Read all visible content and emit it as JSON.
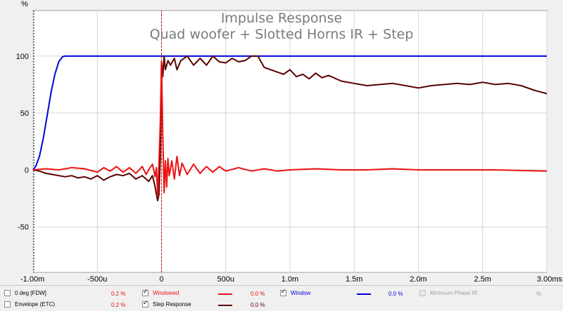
{
  "chart_data": {
    "type": "line",
    "title": "Impulse Response",
    "subtitle": "Quad woofer + Slotted Horns IR + Step",
    "ylabel": "%",
    "xlabel": "",
    "xlim": [
      -1.0,
      3.0
    ],
    "ylim": [
      -90,
      140
    ],
    "x_unit": "ms",
    "grid": true,
    "x_ticks": [
      {
        "value": -1.0,
        "label": "-1.00m"
      },
      {
        "value": -0.5,
        "label": "-500u"
      },
      {
        "value": 0.0,
        "label": "0"
      },
      {
        "value": 0.5,
        "label": "500u"
      },
      {
        "value": 1.0,
        "label": "1.0m"
      },
      {
        "value": 1.5,
        "label": "1.5m"
      },
      {
        "value": 2.0,
        "label": "2.0m"
      },
      {
        "value": 2.5,
        "label": "2.5m"
      },
      {
        "value": 3.0,
        "label": "3.00ms"
      }
    ],
    "y_ticks": [
      {
        "value": -50,
        "label": "-50"
      },
      {
        "value": 0,
        "label": "0"
      },
      {
        "value": 50,
        "label": "50"
      },
      {
        "value": 100,
        "label": "100"
      }
    ],
    "y_unit_label": "%",
    "marker_x": 0.0,
    "series": [
      {
        "name": "Window",
        "color": "#0000dd",
        "x": [
          -1.0,
          -0.98,
          -0.95,
          -0.92,
          -0.89,
          -0.86,
          -0.83,
          -0.8,
          -0.77,
          -0.75,
          -0.7,
          0.0,
          1.0,
          2.0,
          3.0
        ],
        "y": [
          0,
          3,
          12,
          28,
          48,
          68,
          84,
          95,
          99.5,
          100,
          100,
          100,
          100,
          100,
          100
        ]
      },
      {
        "name": "Step Response",
        "color": "#5a0000",
        "x": [
          -1.0,
          -0.95,
          -0.9,
          -0.85,
          -0.8,
          -0.75,
          -0.7,
          -0.65,
          -0.6,
          -0.55,
          -0.5,
          -0.45,
          -0.4,
          -0.35,
          -0.3,
          -0.25,
          -0.2,
          -0.15,
          -0.1,
          -0.07,
          -0.05,
          -0.03,
          -0.02,
          -0.01,
          0.0,
          0.01,
          0.02,
          0.03,
          0.05,
          0.07,
          0.1,
          0.12,
          0.15,
          0.2,
          0.25,
          0.3,
          0.35,
          0.4,
          0.45,
          0.5,
          0.55,
          0.6,
          0.65,
          0.7,
          0.75,
          0.8,
          0.85,
          0.9,
          0.95,
          1.0,
          1.05,
          1.1,
          1.15,
          1.2,
          1.25,
          1.3,
          1.4,
          1.5,
          1.6,
          1.7,
          1.8,
          1.9,
          2.0,
          2.1,
          2.2,
          2.3,
          2.4,
          2.5,
          2.6,
          2.7,
          2.8,
          2.9,
          3.0
        ],
        "y": [
          0,
          -1,
          -3,
          -4,
          -5,
          -6,
          -5,
          -7,
          -6,
          -8,
          -5,
          -9,
          -6,
          -4,
          -5,
          -3,
          -8,
          -5,
          -10,
          -5,
          -15,
          -27,
          -22,
          10,
          95,
          82,
          100,
          88,
          96,
          92,
          98,
          88,
          96,
          100,
          92,
          98,
          92,
          100,
          95,
          94,
          98,
          95,
          96,
          100,
          100,
          90,
          88,
          86,
          84,
          88,
          82,
          84,
          80,
          85,
          81,
          83,
          78,
          76,
          74,
          75,
          76,
          74,
          72,
          74,
          75,
          76,
          75,
          77,
          75,
          76,
          74,
          70,
          67
        ]
      },
      {
        "name": "Windowed",
        "color": "#ee1111",
        "x": [
          -1.0,
          -0.9,
          -0.8,
          -0.7,
          -0.6,
          -0.5,
          -0.45,
          -0.4,
          -0.35,
          -0.3,
          -0.25,
          -0.2,
          -0.15,
          -0.12,
          -0.09,
          -0.07,
          -0.05,
          -0.04,
          -0.03,
          -0.02,
          -0.01,
          0.0,
          0.01,
          0.02,
          0.03,
          0.04,
          0.05,
          0.06,
          0.08,
          0.1,
          0.12,
          0.14,
          0.16,
          0.2,
          0.25,
          0.3,
          0.35,
          0.4,
          0.45,
          0.5,
          0.6,
          0.7,
          0.8,
          0.9,
          1.0,
          1.2,
          1.4,
          1.6,
          1.8,
          2.0,
          2.3,
          2.6,
          3.0
        ],
        "y": [
          0,
          1,
          0,
          2,
          1,
          -2,
          2,
          -1,
          3,
          -2,
          2,
          -3,
          3,
          -4,
          2,
          5,
          -6,
          2,
          -22,
          5,
          40,
          95,
          30,
          -20,
          8,
          -15,
          10,
          -5,
          8,
          -8,
          12,
          -5,
          6,
          -4,
          5,
          -3,
          3,
          -2,
          3,
          -1,
          2,
          -1,
          1,
          -1,
          0,
          1,
          0,
          0,
          1,
          0,
          0,
          0,
          -1
        ]
      }
    ],
    "legend": [
      {
        "label": "0 deg [FDW]",
        "checked": false,
        "value": "0.2 %",
        "color": "#ee1111",
        "show_swatch": false,
        "disabled": false
      },
      {
        "label": "Envelope (ETC)",
        "checked": false,
        "value": "0.2 %",
        "color": "#ee1111",
        "show_swatch": false,
        "disabled": false
      },
      {
        "label": "Windowed",
        "checked": true,
        "value": "0.0 %",
        "color": "#ee1111",
        "show_swatch": true,
        "disabled": false
      },
      {
        "label": "Step Response",
        "checked": true,
        "value": "0.0 %",
        "color": "#5a0000",
        "show_swatch": true,
        "disabled": false
      },
      {
        "label": "Window",
        "checked": true,
        "value": "0.0 %",
        "color": "#0000dd",
        "show_swatch": true,
        "disabled": false
      },
      {
        "label": "Minimum Phase IR",
        "checked": false,
        "value": "%",
        "color": "#a0a0a0",
        "show_swatch": false,
        "disabled": true
      }
    ]
  }
}
